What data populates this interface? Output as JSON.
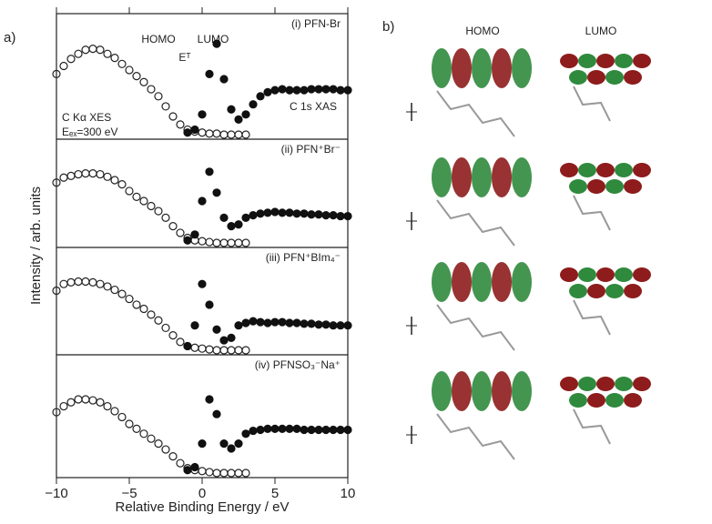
{
  "figure": {
    "panel_a_label": "a)",
    "panel_b_label": "b)",
    "xlabel": "Relative Binding Energy / eV",
    "ylabel": "Intensity / arb. units",
    "orbital_headers": [
      "HOMO",
      "LUMO"
    ]
  },
  "chart_data": [
    {
      "type": "scatter",
      "title": "(i) PFN-Br",
      "annotations": [
        "HOMO",
        "LUMO",
        "Eᵀ",
        "C Kα XES",
        "Eₑₓ=300 eV",
        "C 1s XAS"
      ],
      "x": [
        -10,
        -9.5,
        -9,
        -8.5,
        -8,
        -7.5,
        -7,
        -6.5,
        -6,
        -5.5,
        -5,
        -4.5,
        -4,
        -3.5,
        -3,
        -2.5,
        -2,
        -1.5,
        -1,
        -0.5,
        0,
        0.5,
        1,
        1.5,
        2,
        2.5,
        3,
        3.5,
        4,
        4.5,
        5,
        5.5,
        6,
        6.5,
        7,
        7.5,
        8,
        8.5,
        9,
        9.5,
        10
      ],
      "series": [
        {
          "color": "#222222",
          "marker": "open",
          "values": [
            0.6,
            0.68,
            0.75,
            0.8,
            0.84,
            0.85,
            0.84,
            0.8,
            0.76,
            0.7,
            0.64,
            0.58,
            0.52,
            0.45,
            0.38,
            0.28,
            0.18,
            0.1,
            0.05,
            0.03,
            0.02,
            0.01,
            0.01,
            0,
            0,
            0,
            0,
            null,
            null,
            null,
            null,
            null,
            null,
            null,
            null,
            null,
            null,
            null,
            null,
            null,
            null
          ]
        },
        {
          "color": "#111111",
          "marker": "filled",
          "values": [
            null,
            null,
            null,
            null,
            null,
            null,
            null,
            null,
            null,
            null,
            null,
            null,
            null,
            null,
            null,
            null,
            null,
            null,
            0.02,
            0.05,
            0.2,
            0.6,
            0.9,
            0.55,
            0.25,
            0.15,
            0.2,
            0.3,
            0.38,
            0.42,
            0.44,
            0.45,
            0.44,
            0.44,
            0.44,
            0.45,
            0.45,
            0.45,
            0.45,
            0.44,
            0.44
          ]
        }
      ],
      "xlim": [
        -10,
        10
      ],
      "ylim": [
        0,
        1
      ],
      "xticks": [
        -10,
        -5,
        0,
        5,
        10
      ]
    },
    {
      "type": "scatter",
      "title": "(ii) PFN⁺Br⁻",
      "x": [
        -10,
        -9.5,
        -9,
        -8.5,
        -8,
        -7.5,
        -7,
        -6.5,
        -6,
        -5.5,
        -5,
        -4.5,
        -4,
        -3.5,
        -3,
        -2.5,
        -2,
        -1.5,
        -1,
        -0.5,
        0,
        0.5,
        1,
        1.5,
        2,
        2.5,
        3,
        3.5,
        4,
        4.5,
        5,
        5.5,
        6,
        6.5,
        7,
        7.5,
        8,
        8.5,
        9,
        9.5,
        10
      ],
      "series": [
        {
          "color": "#222222",
          "marker": "open",
          "values": [
            0.72,
            0.78,
            0.8,
            0.82,
            0.83,
            0.83,
            0.82,
            0.79,
            0.75,
            0.7,
            0.62,
            0.55,
            0.5,
            0.44,
            0.38,
            0.3,
            0.2,
            0.12,
            0.06,
            0.03,
            0.02,
            0.01,
            0,
            0,
            0,
            0,
            0,
            null,
            null,
            null,
            null,
            null,
            null,
            null,
            null,
            null,
            null,
            null,
            null,
            null,
            null
          ]
        },
        {
          "color": "#111111",
          "marker": "filled",
          "values": [
            null,
            null,
            null,
            null,
            null,
            null,
            null,
            null,
            null,
            null,
            null,
            null,
            null,
            null,
            null,
            null,
            null,
            null,
            0.03,
            0.1,
            0.5,
            0.85,
            0.6,
            0.3,
            0.2,
            0.22,
            0.3,
            0.33,
            0.35,
            0.36,
            0.37,
            0.36,
            0.36,
            0.35,
            0.35,
            0.34,
            0.34,
            0.33,
            0.33,
            0.32,
            0.32
          ]
        }
      ],
      "xlim": [
        -10,
        10
      ],
      "ylim": [
        0,
        1
      ]
    },
    {
      "type": "scatter",
      "title": "(iii) PFN⁺BIm₄⁻",
      "x": [
        -10,
        -9.5,
        -9,
        -8.5,
        -8,
        -7.5,
        -7,
        -6.5,
        -6,
        -5.5,
        -5,
        -4.5,
        -4,
        -3.5,
        -3,
        -2.5,
        -2,
        -1.5,
        -1,
        -0.5,
        0,
        0.5,
        1,
        1.5,
        2,
        2.5,
        3,
        3.5,
        4,
        4.5,
        5,
        5.5,
        6,
        6.5,
        7,
        7.5,
        8,
        8.5,
        9,
        9.5,
        10
      ],
      "series": [
        {
          "color": "#222222",
          "marker": "open",
          "values": [
            0.72,
            0.8,
            0.82,
            0.83,
            0.83,
            0.82,
            0.8,
            0.77,
            0.73,
            0.68,
            0.62,
            0.55,
            0.5,
            0.43,
            0.36,
            0.27,
            0.18,
            0.1,
            0.05,
            0.03,
            0.02,
            0.01,
            0,
            0,
            0,
            0,
            0,
            null,
            null,
            null,
            null,
            null,
            null,
            null,
            null,
            null,
            null,
            null,
            null,
            null,
            null
          ]
        },
        {
          "color": "#111111",
          "marker": "filled",
          "values": [
            null,
            null,
            null,
            null,
            null,
            null,
            null,
            null,
            null,
            null,
            null,
            null,
            null,
            null,
            null,
            null,
            null,
            null,
            0.05,
            0.3,
            0.8,
            0.55,
            0.25,
            0.12,
            0.15,
            0.3,
            0.33,
            0.35,
            0.34,
            0.33,
            0.34,
            0.34,
            0.33,
            0.33,
            0.32,
            0.32,
            0.31,
            0.31,
            0.3,
            0.3,
            0.3
          ]
        }
      ],
      "xlim": [
        -10,
        10
      ],
      "ylim": [
        0,
        1
      ]
    },
    {
      "type": "scatter",
      "title": "(iv) PFNSO₃⁻Na⁺",
      "x": [
        -10,
        -9.5,
        -9,
        -8.5,
        -8,
        -7.5,
        -7,
        -6.5,
        -6,
        -5.5,
        -5,
        -4.5,
        -4,
        -3.5,
        -3,
        -2.5,
        -2,
        -1.5,
        -1,
        -0.5,
        0,
        0.5,
        1,
        1.5,
        2,
        2.5,
        3,
        3.5,
        4,
        4.5,
        5,
        5.5,
        6,
        6.5,
        7,
        7.5,
        8,
        8.5,
        9,
        9.5,
        10
      ],
      "series": [
        {
          "color": "#222222",
          "marker": "open",
          "values": [
            0.62,
            0.68,
            0.72,
            0.75,
            0.75,
            0.74,
            0.72,
            0.68,
            0.63,
            0.57,
            0.5,
            0.45,
            0.4,
            0.35,
            0.3,
            0.24,
            0.17,
            0.1,
            0.05,
            0.03,
            0.02,
            0.01,
            0,
            0,
            0,
            0,
            0,
            null,
            null,
            null,
            null,
            null,
            null,
            null,
            null,
            null,
            null,
            null,
            null,
            null,
            null
          ]
        },
        {
          "color": "#111111",
          "marker": "filled",
          "values": [
            null,
            null,
            null,
            null,
            null,
            null,
            null,
            null,
            null,
            null,
            null,
            null,
            null,
            null,
            null,
            null,
            null,
            null,
            0.03,
            0.06,
            0.3,
            0.75,
            0.6,
            0.3,
            0.25,
            0.3,
            0.4,
            0.43,
            0.44,
            0.45,
            0.45,
            0.45,
            0.45,
            0.45,
            0.44,
            0.44,
            0.44,
            0.44,
            0.44,
            0.44,
            0.44
          ]
        }
      ],
      "xlim": [
        -10,
        10
      ],
      "ylim": [
        0,
        1
      ],
      "xticks": [
        {
          "value": -10,
          "label": "−10"
        },
        {
          "value": -5,
          "label": "−5"
        },
        0,
        5,
        10
      ]
    }
  ]
}
